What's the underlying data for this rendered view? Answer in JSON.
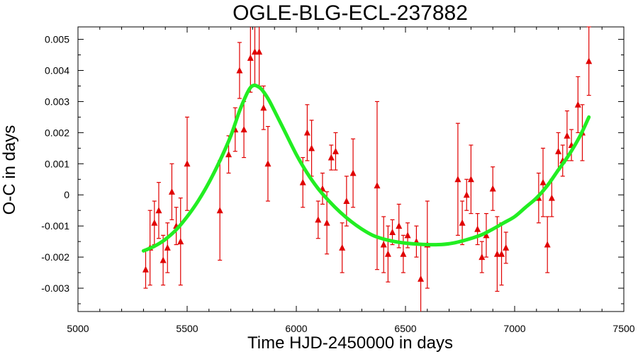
{
  "chart_data": {
    "type": "scatter",
    "title": "OGLE-BLG-ECL-237882",
    "xlabel": "Time HJD-2450000 in days",
    "ylabel": "O-C in days",
    "xlim": [
      5000,
      7500
    ],
    "ylim": [
      -0.00375,
      0.0054
    ],
    "xticks": [
      5000,
      5500,
      6000,
      6500,
      7000,
      7500
    ],
    "xtick_labels": [
      "5000",
      "5500",
      "6000",
      "6500",
      "7000",
      "7500"
    ],
    "yticks": [
      -0.003,
      -0.002,
      -0.001,
      0,
      0.001,
      0.002,
      0.003,
      0.004,
      0.005
    ],
    "ytick_labels": [
      "-0.003",
      "-0.002",
      "-0.001",
      "0",
      "0.001",
      "0.002",
      "0.003",
      "0.004",
      "0.005"
    ],
    "grid": false,
    "colors": {
      "points": "#e00000",
      "fit": "#22ee22"
    },
    "series": [
      {
        "type": "scatter_errorbar",
        "marker": "triangle",
        "points": [
          {
            "x": 5310,
            "y": -0.0024,
            "err": 0.0006
          },
          {
            "x": 5330,
            "y": -0.0017,
            "err": 0.0012
          },
          {
            "x": 5350,
            "y": -0.0009,
            "err": 0.0007
          },
          {
            "x": 5370,
            "y": -0.0005,
            "err": 0.0009
          },
          {
            "x": 5390,
            "y": -0.0021,
            "err": 0.0008
          },
          {
            "x": 5410,
            "y": -0.0017,
            "err": 0.0008
          },
          {
            "x": 5430,
            "y": 0.0001,
            "err": 0.0009
          },
          {
            "x": 5450,
            "y": -0.001,
            "err": 0.0006
          },
          {
            "x": 5470,
            "y": -0.0015,
            "err": 0.0014
          },
          {
            "x": 5500,
            "y": 0.001,
            "err": 0.0015
          },
          {
            "x": 5650,
            "y": -0.0005,
            "err": 0.0016
          },
          {
            "x": 5690,
            "y": 0.0013,
            "err": 0.0006
          },
          {
            "x": 5720,
            "y": 0.0021,
            "err": 0.0007
          },
          {
            "x": 5740,
            "y": 0.004,
            "err": 0.0009
          },
          {
            "x": 5760,
            "y": 0.0021,
            "err": 0.0009
          },
          {
            "x": 5790,
            "y": 0.0044,
            "err": 0.0011
          },
          {
            "x": 5810,
            "y": 0.0046,
            "err": 0.0011
          },
          {
            "x": 5830,
            "y": 0.0046,
            "err": 0.0011
          },
          {
            "x": 5850,
            "y": 0.0028,
            "err": 0.0007
          },
          {
            "x": 5870,
            "y": 0.001,
            "err": 0.0012
          },
          {
            "x": 6030,
            "y": 0.0004,
            "err": 0.0008
          },
          {
            "x": 6050,
            "y": 0.002,
            "err": 0.0009
          },
          {
            "x": 6070,
            "y": 0.0015,
            "err": 0.0009
          },
          {
            "x": 6100,
            "y": -0.0008,
            "err": 0.0006
          },
          {
            "x": 6120,
            "y": 0.0002,
            "err": 0.0005
          },
          {
            "x": 6140,
            "y": -0.0009,
            "err": 0.001
          },
          {
            "x": 6160,
            "y": 0.0012,
            "err": 0.0004
          },
          {
            "x": 6180,
            "y": 0.0014,
            "err": 0.0006
          },
          {
            "x": 6210,
            "y": -0.0017,
            "err": 0.0008
          },
          {
            "x": 6230,
            "y": -0.0002,
            "err": 0.0008
          },
          {
            "x": 6260,
            "y": 0.0007,
            "err": 0.0011
          },
          {
            "x": 6370,
            "y": 0.0003,
            "err": 0.0027
          },
          {
            "x": 6400,
            "y": -0.0016,
            "err": 0.0009
          },
          {
            "x": 6420,
            "y": -0.0019,
            "err": 0.0009
          },
          {
            "x": 6440,
            "y": -0.0012,
            "err": 0.0004
          },
          {
            "x": 6470,
            "y": -0.001,
            "err": 0.0007
          },
          {
            "x": 6490,
            "y": -0.0019,
            "err": 0.0006
          },
          {
            "x": 6510,
            "y": -0.0013,
            "err": 0.0004
          },
          {
            "x": 6550,
            "y": -0.0015,
            "err": 0.0005
          },
          {
            "x": 6570,
            "y": -0.0027,
            "err": 0.0011
          },
          {
            "x": 6600,
            "y": -0.0016,
            "err": 0.0014
          },
          {
            "x": 6740,
            "y": 0.0005,
            "err": 0.0018
          },
          {
            "x": 6760,
            "y": -0.0009,
            "err": 0.0007
          },
          {
            "x": 6780,
            "y": 0.0,
            "err": 0.0005
          },
          {
            "x": 6800,
            "y": 0.0005,
            "err": 0.0011
          },
          {
            "x": 6830,
            "y": -0.0011,
            "err": 0.0005
          },
          {
            "x": 6850,
            "y": -0.002,
            "err": 0.0005
          },
          {
            "x": 6870,
            "y": -0.0013,
            "err": 0.0007
          },
          {
            "x": 6900,
            "y": 0.0002,
            "err": 0.0007
          },
          {
            "x": 6920,
            "y": -0.0019,
            "err": 0.0012
          },
          {
            "x": 6940,
            "y": -0.0019,
            "err": 0.001
          },
          {
            "x": 6960,
            "y": -0.0017,
            "err": 0.0005
          },
          {
            "x": 7110,
            "y": -0.0001,
            "err": 0.0008
          },
          {
            "x": 7130,
            "y": 0.0004,
            "err": 0.0011
          },
          {
            "x": 7150,
            "y": -0.0016,
            "err": 0.0009
          },
          {
            "x": 7170,
            "y": -0.0001,
            "err": 0.0006
          },
          {
            "x": 7200,
            "y": 0.0014,
            "err": 0.0006
          },
          {
            "x": 7220,
            "y": 0.0011,
            "err": 0.0005
          },
          {
            "x": 7240,
            "y": 0.0019,
            "err": 0.0008
          },
          {
            "x": 7260,
            "y": 0.0016,
            "err": 0.0005
          },
          {
            "x": 7290,
            "y": 0.0029,
            "err": 0.0009
          },
          {
            "x": 7310,
            "y": 0.002,
            "err": 0.0009
          },
          {
            "x": 7340,
            "y": 0.0043,
            "err": 0.0011
          }
        ]
      },
      {
        "type": "line",
        "points": [
          {
            "x": 5300,
            "y": -0.0018
          },
          {
            "x": 5350,
            "y": -0.00165
          },
          {
            "x": 5400,
            "y": -0.00143
          },
          {
            "x": 5450,
            "y": -0.00112
          },
          {
            "x": 5500,
            "y": -0.0007
          },
          {
            "x": 5550,
            "y": -0.0002
          },
          {
            "x": 5600,
            "y": 0.0004
          },
          {
            "x": 5650,
            "y": 0.0011
          },
          {
            "x": 5700,
            "y": 0.0019
          },
          {
            "x": 5740,
            "y": 0.0027
          },
          {
            "x": 5770,
            "y": 0.0032
          },
          {
            "x": 5790,
            "y": 0.00345
          },
          {
            "x": 5805,
            "y": 0.00352
          },
          {
            "x": 5820,
            "y": 0.0035
          },
          {
            "x": 5840,
            "y": 0.0034
          },
          {
            "x": 5870,
            "y": 0.0031
          },
          {
            "x": 5900,
            "y": 0.0027
          },
          {
            "x": 5950,
            "y": 0.002
          },
          {
            "x": 6000,
            "y": 0.0013
          },
          {
            "x": 6050,
            "y": 0.0007
          },
          {
            "x": 6100,
            "y": 0.0002
          },
          {
            "x": 6150,
            "y": -0.0002
          },
          {
            "x": 6200,
            "y": -0.00055
          },
          {
            "x": 6250,
            "y": -0.00085
          },
          {
            "x": 6300,
            "y": -0.0011
          },
          {
            "x": 6350,
            "y": -0.0013
          },
          {
            "x": 6400,
            "y": -0.00142
          },
          {
            "x": 6450,
            "y": -0.0015
          },
          {
            "x": 6500,
            "y": -0.00155
          },
          {
            "x": 6550,
            "y": -0.00158
          },
          {
            "x": 6600,
            "y": -0.0016
          },
          {
            "x": 6650,
            "y": -0.0016
          },
          {
            "x": 6700,
            "y": -0.00157
          },
          {
            "x": 6750,
            "y": -0.0015
          },
          {
            "x": 6800,
            "y": -0.0014
          },
          {
            "x": 6850,
            "y": -0.00128
          },
          {
            "x": 6900,
            "y": -0.0011
          },
          {
            "x": 6950,
            "y": -0.0009
          },
          {
            "x": 7000,
            "y": -0.0007
          },
          {
            "x": 7050,
            "y": -0.0004
          },
          {
            "x": 7100,
            "y": -0.0001
          },
          {
            "x": 7150,
            "y": 0.0003
          },
          {
            "x": 7200,
            "y": 0.0008
          },
          {
            "x": 7250,
            "y": 0.0013
          },
          {
            "x": 7300,
            "y": 0.0019
          },
          {
            "x": 7340,
            "y": 0.0025
          }
        ]
      }
    ]
  }
}
